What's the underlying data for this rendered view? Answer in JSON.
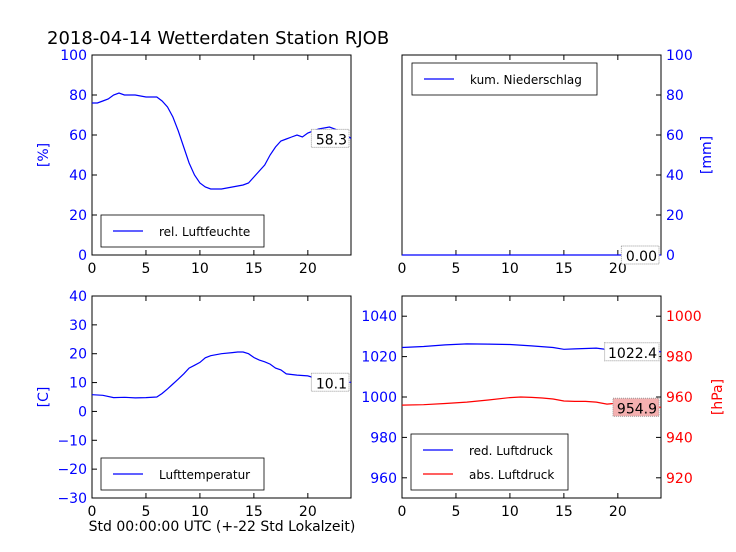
{
  "title": "2018-04-14 Wetterdaten Station RJOB",
  "xlabel": "Std 00:00:00 UTC (+-22 Std Lokalzeit)",
  "colors": {
    "blue": "#0000ff",
    "red": "#ff0000",
    "black": "#000000"
  },
  "chart_data": [
    {
      "type": "line",
      "position": "top-left",
      "xlim": [
        0,
        24
      ],
      "ylim": [
        0,
        100
      ],
      "xticks": [
        0,
        5,
        10,
        15,
        20
      ],
      "yticks": [
        0,
        20,
        40,
        60,
        80,
        100
      ],
      "ylabel": "[%]",
      "ylabel_side": "left",
      "ylabel_color": "blue",
      "legend_placement": "lower-left",
      "series": [
        {
          "name": "rel. Luftfeuchte",
          "color": "blue",
          "x": [
            0,
            0.5,
            1,
            1.5,
            2,
            2.5,
            3,
            4,
            5,
            6,
            6.5,
            7,
            7.5,
            8,
            8.5,
            9,
            9.5,
            10,
            10.5,
            11,
            12,
            13,
            14,
            14.5,
            15,
            15.5,
            16,
            16.5,
            17,
            17.5,
            18,
            18.5,
            19,
            19.5,
            20,
            20.5,
            21,
            22,
            23,
            24
          ],
          "y": [
            76,
            76,
            77,
            78,
            80,
            81,
            80,
            80,
            79,
            79,
            77,
            74,
            69,
            62,
            54,
            46,
            40,
            36,
            34,
            33,
            33,
            34,
            35,
            36,
            39,
            42,
            45,
            50,
            54,
            57,
            58,
            59,
            60,
            59,
            61,
            62,
            63,
            64,
            62,
            58.3
          ]
        }
      ],
      "annotation": "58.3"
    },
    {
      "type": "line",
      "position": "top-right",
      "xlim": [
        0,
        24
      ],
      "ylim": [
        0,
        100
      ],
      "xticks": [
        0,
        5,
        10,
        15,
        20
      ],
      "yticks": [
        0,
        20,
        40,
        60,
        80,
        100
      ],
      "ylabel": "[mm]",
      "ylabel_side": "right",
      "ylabel_color": "blue",
      "legend_placement": "upper-left",
      "series": [
        {
          "name": "kum. Niederschlag",
          "color": "blue",
          "x": [
            0,
            24
          ],
          "y": [
            0,
            0
          ]
        }
      ],
      "annotation": "0.00"
    },
    {
      "type": "line",
      "position": "bottom-left",
      "xlim": [
        0,
        24
      ],
      "ylim": [
        -30,
        40
      ],
      "xticks": [
        0,
        5,
        10,
        15,
        20
      ],
      "yticks": [
        -30,
        -20,
        -10,
        0,
        10,
        20,
        30,
        40
      ],
      "ylabel": "[C]",
      "ylabel_side": "left",
      "ylabel_color": "blue",
      "legend_placement": "lower-left",
      "series": [
        {
          "name": "Lufttemperatur",
          "color": "blue",
          "x": [
            0,
            1,
            2,
            3,
            4,
            5,
            6,
            6.5,
            7,
            7.5,
            8,
            8.5,
            9,
            9.5,
            10,
            10.5,
            11,
            12,
            13,
            13.5,
            14,
            14.5,
            15,
            15.5,
            16,
            16.5,
            17,
            17.5,
            18,
            19,
            20,
            21,
            22,
            23,
            24
          ],
          "y": [
            5.8,
            5.6,
            4.8,
            4.9,
            4.7,
            4.8,
            5.0,
            6.2,
            7.8,
            9.5,
            11.2,
            13.0,
            15.0,
            16.0,
            17.0,
            18.6,
            19.3,
            20.0,
            20.4,
            20.6,
            20.6,
            20.0,
            18.7,
            17.8,
            17.2,
            16.4,
            15.0,
            14.4,
            13.0,
            12.6,
            12.3,
            11.2,
            11.0,
            10.3,
            10.1
          ]
        }
      ],
      "annotation": "10.1"
    },
    {
      "type": "line",
      "position": "bottom-right",
      "xlim": [
        0,
        24
      ],
      "ylim_left": [
        950,
        1050
      ],
      "ylim_right": [
        910,
        1010
      ],
      "xticks": [
        0,
        5,
        10,
        15,
        20
      ],
      "yticks_left": [
        960,
        980,
        1000,
        1020,
        1040
      ],
      "yticks_right": [
        920,
        940,
        960,
        980,
        1000
      ],
      "ylabel_right": "[hPa]",
      "ylabel_color": "red",
      "legend_placement": "lower-left",
      "series": [
        {
          "name": "red. Luftdruck",
          "color": "blue",
          "axis": "left",
          "x": [
            0,
            2,
            4,
            6,
            8,
            10,
            12,
            14,
            15,
            16,
            18,
            19,
            20,
            22,
            24
          ],
          "y": [
            1024.5,
            1025,
            1025.8,
            1026.3,
            1026.2,
            1026,
            1025.3,
            1024.5,
            1023.6,
            1023.8,
            1024.2,
            1023.5,
            1023.8,
            1023.2,
            1022.4
          ]
        },
        {
          "name": "abs. Luftdruck",
          "color": "red",
          "axis": "right",
          "x": [
            0,
            2,
            4,
            6,
            8,
            10,
            11,
            12,
            13,
            14,
            15,
            16,
            17,
            18,
            19,
            20,
            22,
            24
          ],
          "y": [
            956,
            956.2,
            956.8,
            957.5,
            958.5,
            959.7,
            960,
            959.8,
            959.5,
            959,
            958,
            957.8,
            957.8,
            957.5,
            956.5,
            957,
            956,
            954.9
          ]
        }
      ],
      "annotations": [
        "1022.4",
        "954.9"
      ]
    }
  ]
}
